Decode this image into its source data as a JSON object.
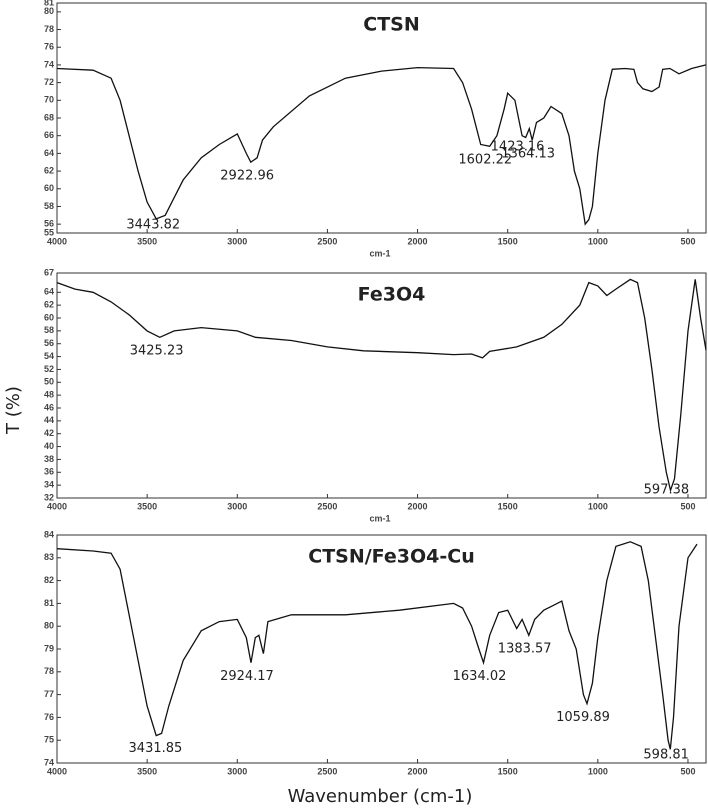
{
  "chart_data": [
    {
      "type": "line",
      "title": "CTSN",
      "xlabel": "cm-1",
      "color": "#111111",
      "xlim": [
        4000,
        400
      ],
      "xticks": [
        4000,
        3500,
        3000,
        2500,
        2000,
        1500,
        1000,
        500
      ],
      "ylim": [
        55,
        81
      ],
      "yticks": [
        55,
        56,
        58,
        60,
        62,
        64,
        66,
        68,
        70,
        72,
        74,
        76,
        78,
        80,
        81
      ],
      "x": [
        4000,
        3800,
        3700,
        3650,
        3600,
        3550,
        3500,
        3450,
        3400,
        3350,
        3300,
        3200,
        3100,
        3000,
        2950,
        2925,
        2890,
        2860,
        2800,
        2600,
        2400,
        2200,
        2000,
        1800,
        1750,
        1700,
        1650,
        1600,
        1560,
        1520,
        1500,
        1460,
        1420,
        1400,
        1380,
        1364,
        1340,
        1300,
        1260,
        1200,
        1160,
        1130,
        1100,
        1070,
        1050,
        1030,
        1000,
        960,
        920,
        850,
        800,
        780,
        750,
        700,
        660,
        640,
        600,
        550,
        480,
        400
      ],
      "values": [
        73.6,
        73.4,
        72.5,
        70,
        66,
        62,
        58.5,
        56.6,
        57,
        59,
        61,
        63.5,
        65,
        66.2,
        64,
        63,
        63.5,
        65.5,
        67,
        70.5,
        72.5,
        73.3,
        73.7,
        73.6,
        72,
        69,
        65,
        64.8,
        66,
        69,
        70.8,
        70,
        66,
        65.8,
        66.8,
        65.5,
        67.5,
        68,
        69.3,
        68.5,
        66,
        62,
        60,
        56,
        56.5,
        58,
        64,
        70,
        73.5,
        73.6,
        73.5,
        72,
        71.3,
        71,
        71.5,
        73.5,
        73.6,
        73,
        73.6,
        74
      ],
      "annotations": [
        3443.82,
        2922.96,
        1602.22,
        1423.16,
        1364.13
      ]
    },
    {
      "type": "line",
      "title": "Fe3O4",
      "xlabel": "cm-1",
      "color": "#111111",
      "xlim": [
        4000,
        400
      ],
      "xticks": [
        4000,
        3500,
        3000,
        2500,
        2000,
        1500,
        1000,
        500
      ],
      "ylim": [
        32,
        67
      ],
      "yticks": [
        32,
        34,
        36,
        38,
        40,
        42,
        44,
        46,
        48,
        50,
        52,
        54,
        56,
        58,
        60,
        62,
        64,
        67
      ],
      "x": [
        4000,
        3900,
        3800,
        3700,
        3600,
        3500,
        3430,
        3350,
        3200,
        3000,
        2900,
        2700,
        2500,
        2300,
        2000,
        1800,
        1700,
        1640,
        1600,
        1450,
        1300,
        1200,
        1100,
        1050,
        1000,
        950,
        900,
        820,
        780,
        740,
        700,
        660,
        620,
        597,
        575,
        540,
        500,
        460,
        430,
        400
      ],
      "values": [
        65.5,
        64.5,
        64,
        62.5,
        60.5,
        58,
        57,
        58,
        58.5,
        58,
        57,
        56.5,
        55.5,
        54.9,
        54.6,
        54.3,
        54.4,
        53.8,
        54.8,
        55.5,
        57,
        59,
        62,
        65.5,
        65,
        63.5,
        64.5,
        66,
        65.5,
        60,
        52,
        43,
        36,
        33.2,
        35,
        45,
        58,
        66,
        60,
        55
      ],
      "annotations": [
        3425.23,
        597.38
      ]
    },
    {
      "type": "line",
      "title": "CTSN/Fe3O4-Cu",
      "color": "#111111",
      "xlim": [
        4000,
        400
      ],
      "xticks": [
        4000,
        3500,
        3000,
        2500,
        2000,
        1500,
        1000,
        500
      ],
      "ylim": [
        74,
        84
      ],
      "yticks": [
        74,
        75,
        76,
        77,
        78,
        79,
        80,
        81,
        82,
        83,
        84
      ],
      "x": [
        4000,
        3800,
        3700,
        3650,
        3600,
        3550,
        3500,
        3450,
        3420,
        3380,
        3300,
        3200,
        3100,
        3000,
        2950,
        2924,
        2900,
        2880,
        2855,
        2830,
        2700,
        2400,
        2100,
        1800,
        1750,
        1700,
        1660,
        1634,
        1600,
        1550,
        1500,
        1450,
        1420,
        1383,
        1350,
        1300,
        1250,
        1200,
        1160,
        1120,
        1080,
        1060,
        1030,
        1000,
        950,
        900,
        820,
        760,
        720,
        680,
        640,
        610,
        598,
        580,
        550,
        500,
        450
      ],
      "values": [
        83.4,
        83.3,
        83.2,
        82.5,
        80.5,
        78.5,
        76.5,
        75.2,
        75.3,
        76.5,
        78.5,
        79.8,
        80.2,
        80.3,
        79.5,
        78.4,
        79.5,
        79.6,
        78.8,
        80.2,
        80.5,
        80.5,
        80.7,
        81,
        80.8,
        80,
        79,
        78.4,
        79.6,
        80.6,
        80.7,
        79.9,
        80.3,
        79.6,
        80.3,
        80.7,
        80.9,
        81.1,
        79.8,
        79,
        77,
        76.6,
        77.5,
        79.5,
        82,
        83.5,
        83.7,
        83.5,
        82,
        79.5,
        77,
        75,
        74.6,
        76,
        80,
        83,
        83.6
      ],
      "annotations": [
        3431.85,
        2924.17,
        1634.02,
        1383.57,
        1059.89,
        598.81
      ]
    }
  ],
  "ylabel": "T (%)",
  "xlabel": "Wavenumber (cm-1)"
}
